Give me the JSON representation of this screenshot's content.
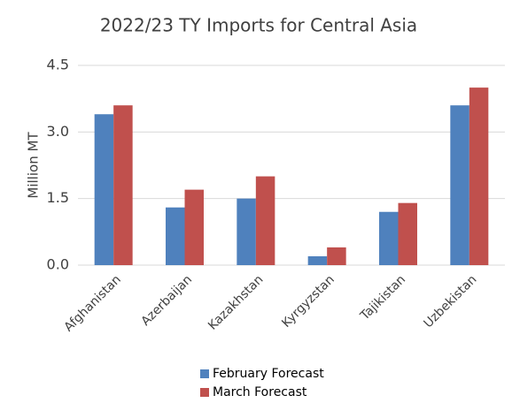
{
  "chart_data": {
    "type": "bar",
    "title": "2022/23 TY Imports for Central Asia",
    "y_label": "Million MT",
    "categories": [
      "Afghanistan",
      "Azerbaijan",
      "Kazakhstan",
      "Kyrgyzstan",
      "Tajikistan",
      "Uzbekistan"
    ],
    "series": [
      {
        "name": "February Forecast",
        "color": "#4f81bd",
        "values": [
          3.4,
          1.3,
          1.5,
          0.2,
          1.2,
          3.6
        ]
      },
      {
        "name": "March Forecast",
        "color": "#c0504d",
        "values": [
          3.6,
          1.7,
          2.0,
          0.4,
          1.4,
          4.0
        ]
      }
    ],
    "ylim": [
      0,
      4.5
    ],
    "yticks": [
      {
        "value": 0,
        "label": "0.0"
      },
      1.5,
      {
        "value": 3,
        "label": "3.0"
      },
      4.5
    ],
    "grid": true,
    "legend": "bottom"
  }
}
